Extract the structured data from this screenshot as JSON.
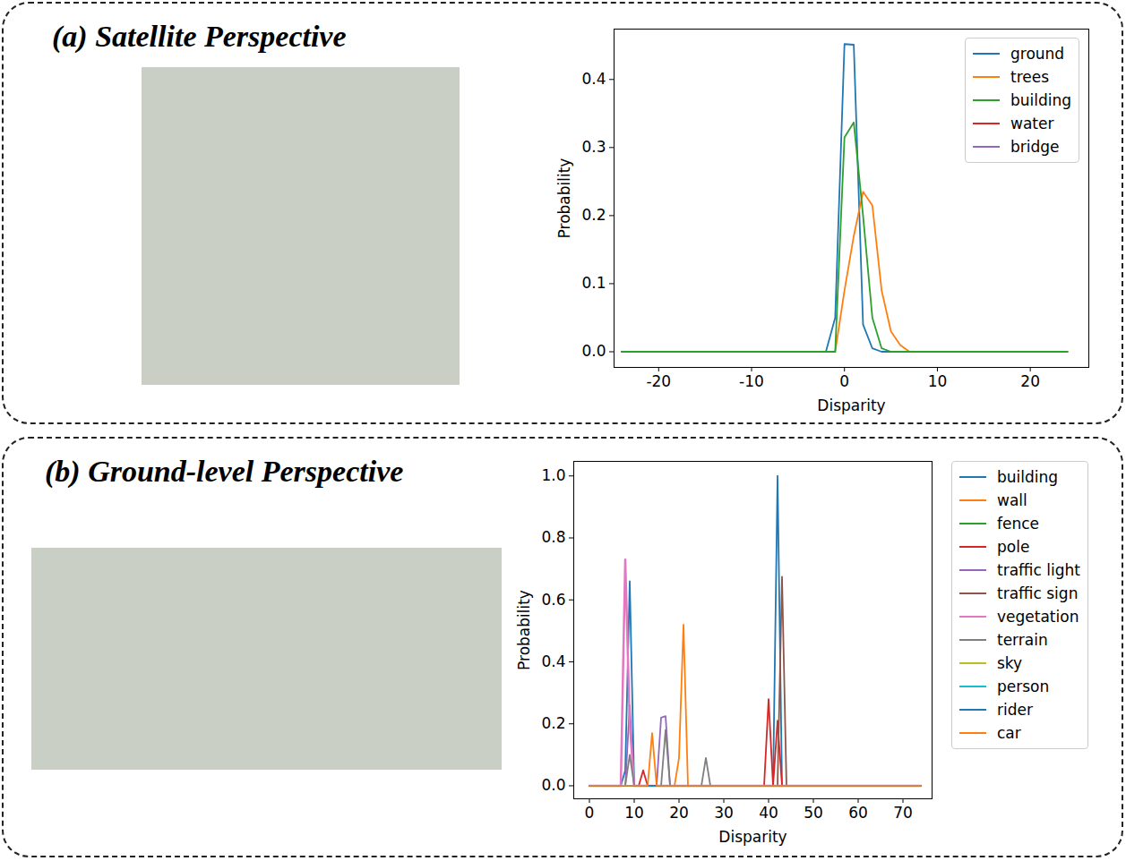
{
  "chart_data": [
    {
      "type": "line",
      "title": "(a) Satellite Perspective",
      "xlabel": "Disparity",
      "ylabel": "Probability",
      "legend": "upper right",
      "xlim": [
        -24.8,
        26.3
      ],
      "xticks": [
        -20,
        -10,
        0,
        10,
        20
      ],
      "ylim": [
        -0.023,
        0.474
      ],
      "yticks": [
        {
          "value": 0,
          "label": "0.0"
        },
        {
          "value": 0.1,
          "label": "0.1"
        },
        {
          "value": 0.2,
          "label": "0.2"
        },
        {
          "value": 0.3,
          "label": "0.3"
        },
        {
          "value": 0.4,
          "label": "0.4"
        }
      ],
      "x": [
        -24,
        -2,
        -1,
        0,
        1,
        2,
        3,
        4,
        5,
        6,
        7,
        8,
        24
      ],
      "series": [
        {
          "name": "ground",
          "color": "#1f77b4",
          "values": [
            0,
            0,
            0.05,
            0.452,
            0.451,
            0.04,
            0.005,
            0,
            0,
            0,
            0,
            0,
            0
          ]
        },
        {
          "name": "trees",
          "color": "#ff7f0e",
          "values": [
            0,
            0,
            0,
            0.09,
            0.17,
            0.235,
            0.215,
            0.09,
            0.03,
            0.01,
            0,
            0,
            0
          ]
        },
        {
          "name": "building",
          "color": "#2ca02c",
          "values": [
            0,
            0,
            0,
            0.315,
            0.337,
            0.2,
            0.05,
            0.005,
            0,
            0,
            0,
            0,
            0
          ]
        },
        {
          "name": "water",
          "color": "#d62728",
          "values": [
            null,
            null,
            null,
            null,
            null,
            null,
            null,
            null,
            null,
            null,
            null,
            null,
            null
          ]
        },
        {
          "name": "bridge",
          "color": "#9467bd",
          "values": [
            null,
            null,
            null,
            null,
            null,
            null,
            null,
            null,
            null,
            null,
            null,
            null,
            null
          ]
        }
      ]
    },
    {
      "type": "line",
      "title": "(b) Ground-level Perspective",
      "xlabel": "Disparity",
      "ylabel": "Probability",
      "legend": "right",
      "xlim": [
        -3.5,
        76.5
      ],
      "xticks": [
        0,
        10,
        20,
        30,
        40,
        50,
        60,
        70
      ],
      "ylim": [
        -0.042,
        1.047
      ],
      "yticks": [
        {
          "value": 0,
          "label": "0.0"
        },
        {
          "value": 0.2,
          "label": "0.2"
        },
        {
          "value": 0.4,
          "label": "0.4"
        },
        {
          "value": 0.6,
          "label": "0.6"
        },
        {
          "value": 0.8,
          "label": "0.8"
        },
        {
          "value": 1,
          "label": "1.0"
        }
      ],
      "x": [
        0,
        6,
        7,
        8,
        9,
        10,
        11,
        12,
        13,
        14,
        15,
        16,
        17,
        18,
        19,
        20,
        21,
        22,
        23,
        25,
        26,
        27,
        38,
        39,
        40,
        41,
        42,
        43,
        44,
        45,
        74
      ],
      "series": [
        {
          "name": "building",
          "color": "#1f77b4",
          "values": [
            0,
            0,
            0,
            0.05,
            0.66,
            0,
            0,
            0,
            0,
            0,
            0,
            0,
            0,
            0,
            0,
            0,
            0,
            0,
            0,
            0,
            0,
            0,
            0,
            0,
            0,
            0,
            1.0,
            0,
            0,
            0,
            0
          ]
        },
        {
          "name": "wall",
          "color": "#ff7f0e",
          "values": [
            0,
            0,
            0,
            0,
            0,
            0,
            0,
            0,
            0,
            0,
            0,
            0,
            0,
            0,
            0,
            0.09,
            0.52,
            0,
            0,
            0,
            0,
            0,
            0,
            0,
            0,
            0,
            0,
            0,
            0,
            0,
            0
          ]
        },
        {
          "name": "fence",
          "color": "#2ca02c",
          "values": [
            0,
            0,
            0,
            0,
            0,
            0,
            0,
            0,
            0,
            0,
            0,
            0,
            0,
            0,
            0,
            0,
            0,
            0,
            0,
            0,
            0,
            0,
            0,
            0,
            0,
            0,
            0,
            0,
            0,
            0,
            0
          ]
        },
        {
          "name": "pole",
          "color": "#d62728",
          "values": [
            0,
            0,
            0,
            0,
            0,
            0,
            0,
            0.05,
            0,
            0,
            0,
            0,
            0,
            0,
            0,
            0,
            0,
            0,
            0,
            0,
            0,
            0,
            0,
            0,
            0.28,
            0,
            0.21,
            0,
            0,
            0,
            0
          ]
        },
        {
          "name": "traffic light",
          "color": "#9467bd",
          "values": [
            0,
            0,
            0,
            0,
            0.26,
            0,
            0,
            0,
            0,
            0,
            0,
            0.22,
            0.225,
            0,
            0,
            0,
            0,
            0,
            0,
            0,
            0,
            0,
            0,
            0,
            0,
            0,
            0,
            0,
            0,
            0,
            0
          ]
        },
        {
          "name": "traffic sign",
          "color": "#8c564b",
          "values": [
            0,
            0,
            0,
            0,
            0,
            0,
            0,
            0,
            0,
            0,
            0,
            0,
            0,
            0,
            0,
            0,
            0,
            0,
            0,
            0,
            0,
            0,
            0,
            0,
            0,
            0,
            0,
            0.675,
            0,
            0,
            0
          ]
        },
        {
          "name": "vegetation",
          "color": "#e377c2",
          "values": [
            0,
            0,
            0,
            0.73,
            0.2,
            0,
            0,
            0,
            0,
            0,
            0,
            0,
            0,
            0,
            0,
            0,
            0,
            0,
            0,
            0,
            0,
            0,
            0,
            0,
            0,
            0,
            0,
            0,
            0,
            0,
            0
          ]
        },
        {
          "name": "terrain",
          "color": "#7f7f7f",
          "values": [
            0,
            0,
            0,
            0,
            0.1,
            0,
            0,
            0,
            0,
            0,
            0,
            0,
            0.18,
            0,
            0,
            0,
            0,
            0,
            0,
            0,
            0.09,
            0,
            0,
            0,
            0,
            0,
            0,
            0,
            0,
            0,
            0
          ]
        },
        {
          "name": "sky",
          "color": "#bcbd22",
          "values": [
            0,
            0,
            0,
            0,
            0,
            0,
            0,
            0,
            0,
            0,
            0,
            0,
            0,
            0,
            0,
            0,
            0,
            0,
            0,
            0,
            0,
            0,
            0,
            0,
            0,
            0,
            0,
            0,
            0,
            0,
            0
          ]
        },
        {
          "name": "person",
          "color": "#17becf",
          "values": [
            0,
            0,
            0,
            0,
            0,
            0,
            0,
            0,
            0,
            0,
            0,
            0,
            0,
            0,
            0,
            0,
            0,
            0,
            0,
            0,
            0,
            0,
            0,
            0,
            0,
            0,
            0,
            0,
            0,
            0,
            0
          ]
        },
        {
          "name": "rider",
          "color": "#1f77b4",
          "values": [
            0,
            0,
            0,
            0,
            0,
            0,
            0,
            0,
            0,
            0,
            0,
            0,
            0,
            0,
            0,
            0,
            0,
            0,
            0,
            0,
            0,
            0,
            0,
            0,
            0,
            0,
            0,
            0,
            0,
            0,
            0
          ]
        },
        {
          "name": "car",
          "color": "#ff7f0e",
          "values": [
            0,
            0,
            0,
            0,
            0,
            0,
            0,
            0,
            0,
            0.17,
            0,
            0,
            0,
            0,
            0,
            0,
            0,
            0,
            0,
            0,
            0,
            0,
            0,
            0,
            0,
            0,
            0,
            0,
            0,
            0,
            0
          ]
        }
      ]
    }
  ]
}
